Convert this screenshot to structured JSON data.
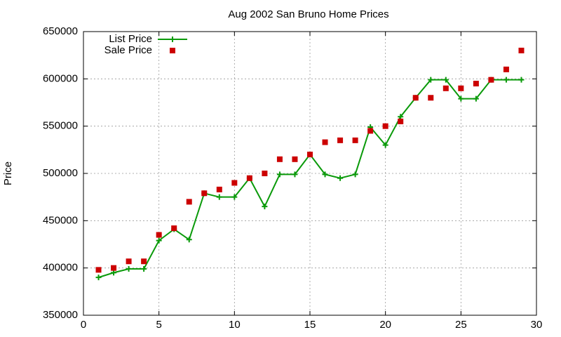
{
  "chart_data": {
    "type": "line",
    "title": "Aug 2002 San Bruno Home Prices",
    "y_label": "Price",
    "x": [
      1,
      2,
      3,
      4,
      5,
      6,
      7,
      8,
      9,
      10,
      11,
      12,
      13,
      14,
      15,
      16,
      17,
      18,
      19,
      20,
      21,
      22,
      23,
      24,
      25,
      26,
      27,
      28,
      29
    ],
    "series": [
      {
        "name": "List Price",
        "color": "#0a9a0a",
        "mode": "linespoints",
        "values": [
          390000,
          395000,
          399000,
          399000,
          429000,
          441000,
          430000,
          479000,
          475000,
          475000,
          495000,
          465000,
          499000,
          499000,
          520000,
          499000,
          495000,
          499000,
          549000,
          530000,
          560000,
          580000,
          599000,
          599000,
          579000,
          579000,
          599000,
          599000,
          599000
        ]
      },
      {
        "name": "Sale Price",
        "color": "#cc0000",
        "mode": "points",
        "values": [
          398000,
          400000,
          407000,
          407000,
          435000,
          442000,
          470000,
          479000,
          483000,
          490000,
          495000,
          500000,
          515000,
          515000,
          520000,
          533000,
          535000,
          535000,
          545000,
          550000,
          555000,
          580000,
          580000,
          590000,
          590000,
          595000,
          599000,
          610000,
          630000
        ]
      }
    ],
    "xlim": [
      0,
      30
    ],
    "xticks": [
      0,
      5,
      10,
      15,
      20,
      25,
      30
    ],
    "ylim": [
      350000,
      650000
    ],
    "yticks": [
      350000,
      400000,
      450000,
      500000,
      550000,
      600000,
      650000
    ],
    "grid": true,
    "legend": "top-left"
  }
}
